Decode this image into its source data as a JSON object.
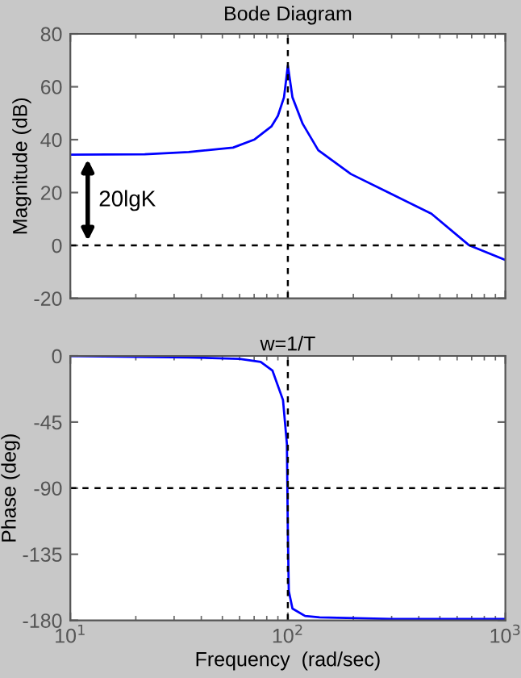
{
  "chart_data": [
    {
      "type": "line",
      "title": "Bode Diagram",
      "ylabel": "Magnitude (dB)",
      "log": "x",
      "xlim": [
        10,
        1000
      ],
      "ylim": [
        -20,
        80
      ],
      "yticks": [
        -20,
        0,
        20,
        40,
        60,
        80
      ],
      "xticks": [
        {
          "value": 10,
          "label": null
        },
        {
          "value": 100,
          "label": null
        },
        {
          "value": 1000,
          "label": null
        }
      ],
      "tick_labels": "y",
      "grid": false,
      "series": [
        {
          "color": "#0000ff",
          "x": [
            10,
            22,
            35,
            56,
            70,
            84,
            90,
            96,
            100,
            105,
            117,
            138,
            195,
            290,
            457,
            683,
            1000
          ],
          "values": [
            34.3,
            34.5,
            35.3,
            37,
            40,
            45,
            49,
            56,
            68,
            56,
            46,
            36,
            27,
            20,
            12,
            0,
            -5.5
          ]
        }
      ],
      "ref_lines": [
        {
          "axis": "y",
          "value": 0,
          "line_style": "dashed",
          "color": "#000000"
        },
        {
          "axis": "x",
          "value": 100,
          "line_style": "dashed",
          "color": "#000000"
        }
      ],
      "annotations": [
        "20lgK"
      ]
    },
    {
      "type": "line",
      "ylabel": "Phase (deg)",
      "xlabel": "Frequency  (rad/sec)",
      "log": "x",
      "xlim": [
        10,
        1000
      ],
      "ylim": [
        -180,
        0
      ],
      "yticks": [
        -180,
        -135,
        -90,
        -45,
        0
      ],
      "xticks": [
        {
          "value": 10,
          "label": "10$^{1}$"
        },
        {
          "value": 100,
          "label": "10$^{2}$"
        },
        {
          "value": 1000,
          "label": "10$^{3}$"
        }
      ],
      "grid": false,
      "series": [
        {
          "color": "#0000ff",
          "x": [
            10,
            35,
            60,
            75,
            85,
            95,
            99,
            100,
            101,
            105,
            120,
            140,
            300,
            1000
          ],
          "values": [
            0,
            -1,
            -2,
            -4,
            -10,
            -30,
            -60,
            -120,
            -160,
            -172,
            -177,
            -178,
            -179,
            -179
          ]
        }
      ],
      "ref_lines": [
        {
          "axis": "y",
          "value": -90,
          "line_style": "dashed",
          "color": "#000000"
        },
        {
          "axis": "x",
          "value": 100,
          "line_style": "dashed",
          "color": "#000000"
        }
      ],
      "annotations": [
        "w=1/T"
      ]
    }
  ]
}
